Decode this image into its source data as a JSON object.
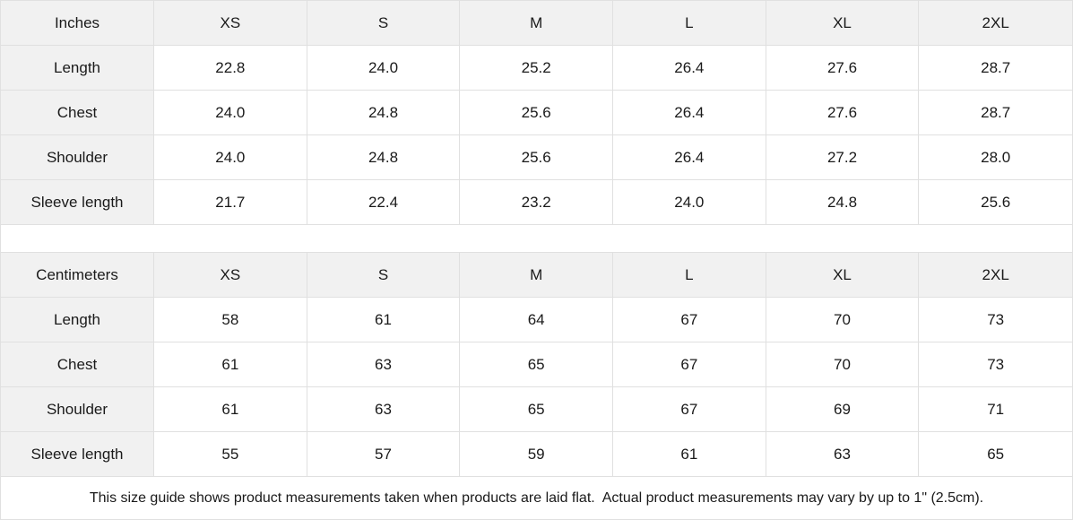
{
  "tables": [
    {
      "unit_label": "Inches",
      "sizes": [
        "XS",
        "S",
        "M",
        "L",
        "XL",
        "2XL"
      ],
      "rows": [
        {
          "label": "Length",
          "values": [
            "22.8",
            "24.0",
            "25.2",
            "26.4",
            "27.6",
            "28.7"
          ]
        },
        {
          "label": "Chest",
          "values": [
            "24.0",
            "24.8",
            "25.6",
            "26.4",
            "27.6",
            "28.7"
          ]
        },
        {
          "label": "Shoulder",
          "values": [
            "24.0",
            "24.8",
            "25.6",
            "26.4",
            "27.2",
            "28.0"
          ]
        },
        {
          "label": "Sleeve length",
          "values": [
            "21.7",
            "22.4",
            "23.2",
            "24.0",
            "24.8",
            "25.6"
          ]
        }
      ]
    },
    {
      "unit_label": "Centimeters",
      "sizes": [
        "XS",
        "S",
        "M",
        "L",
        "XL",
        "2XL"
      ],
      "rows": [
        {
          "label": "Length",
          "values": [
            "58",
            "61",
            "64",
            "67",
            "70",
            "73"
          ]
        },
        {
          "label": "Chest",
          "values": [
            "61",
            "63",
            "65",
            "67",
            "70",
            "73"
          ]
        },
        {
          "label": "Shoulder",
          "values": [
            "61",
            "63",
            "65",
            "67",
            "69",
            "71"
          ]
        },
        {
          "label": "Sleeve length",
          "values": [
            "55",
            "57",
            "59",
            "61",
            "63",
            "65"
          ]
        }
      ]
    }
  ],
  "footer": {
    "note": "This size guide shows product measurements taken when products are laid flat.  Actual product measurements may vary by up to 1\" (2.5cm)."
  },
  "colors": {
    "header_bg": "#f1f1f1",
    "grid_line": "#e0e0e0",
    "text": "#1a1a1a"
  }
}
